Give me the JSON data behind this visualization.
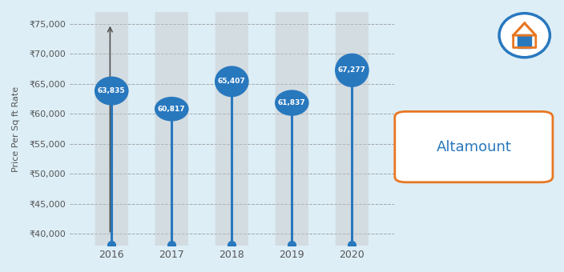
{
  "years": [
    2016,
    2017,
    2018,
    2019,
    2020
  ],
  "values": [
    63835,
    60817,
    65407,
    61837,
    67277
  ],
  "y_min": 38000,
  "y_max": 77000,
  "y_ticks": [
    40000,
    45000,
    50000,
    55000,
    60000,
    65000,
    70000,
    75000
  ],
  "background_color": "#ddeef6",
  "plot_bg_color": "#ddeef6",
  "bar_color": "#2e86c1",
  "bar_bg_color": "#d0d0d0",
  "bar_bg_alpha": 0.5,
  "line_color": "#2878be",
  "bubble_color": "#2878be",
  "bubble_text_color": "#ffffff",
  "bottom_dot_color": "#2878be",
  "ylabel": "Price Per Sq ft Rate",
  "legend_text": "Altamount",
  "legend_box_color": "#ffffff",
  "legend_border_color": "#e87722",
  "legend_text_color": "#2878be",
  "tick_label_color": "#555555",
  "grid_color": "#888888",
  "rupee_symbol": "₹"
}
